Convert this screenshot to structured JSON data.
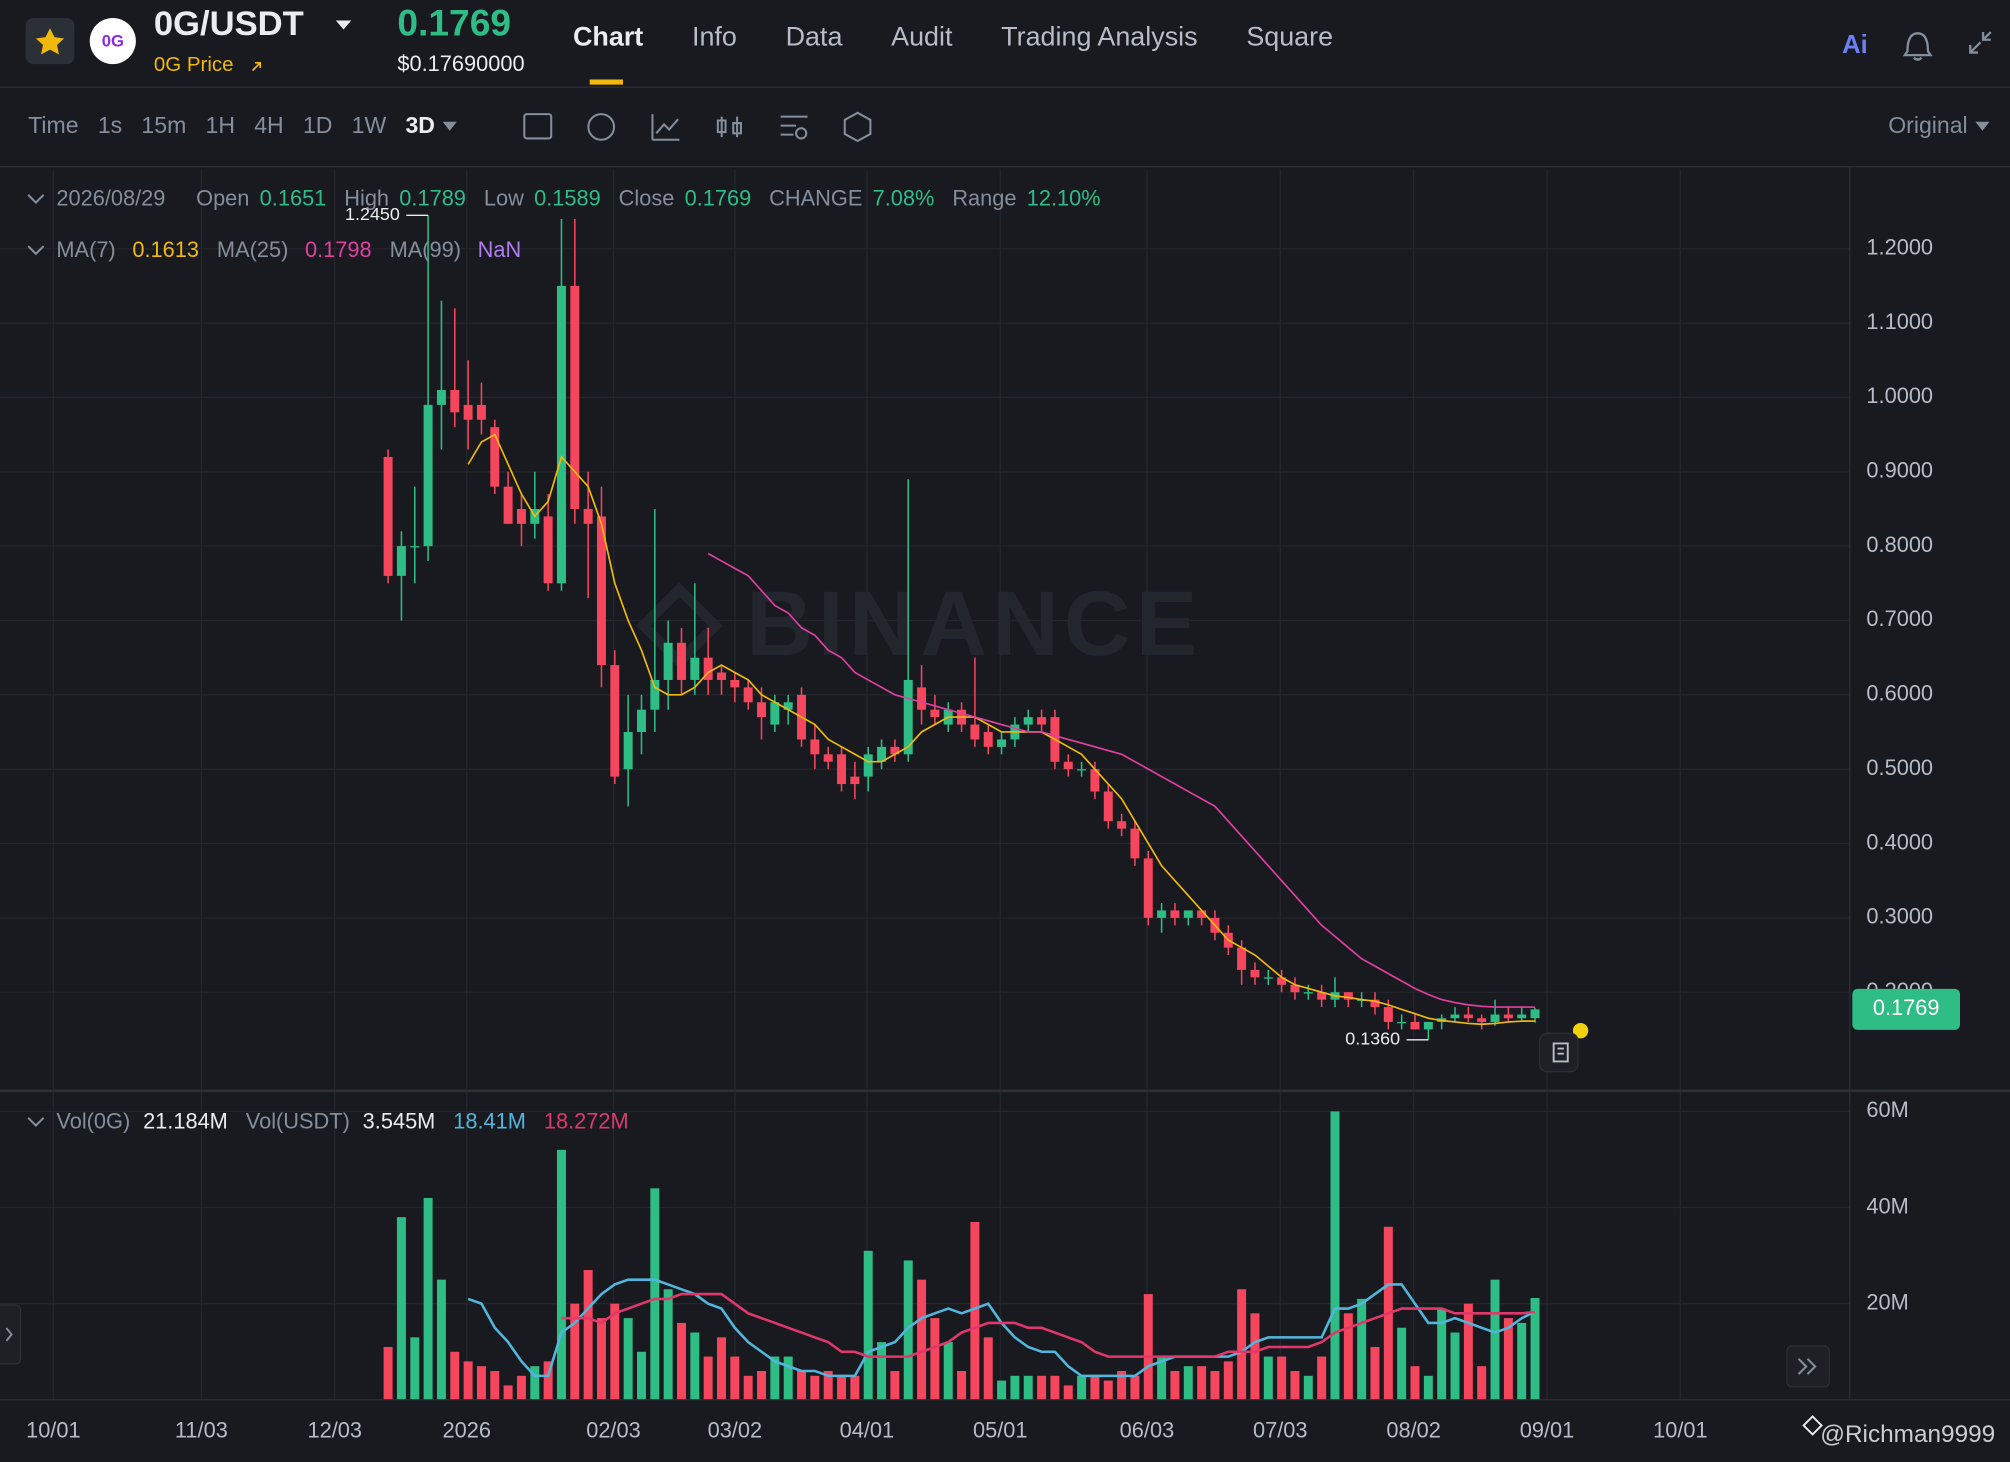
{
  "header": {
    "symbol": "0G/USDT",
    "logo": "0G",
    "subtitle": "0G Price",
    "price": "0.1769",
    "price_usd": "$0.17690000",
    "tabs": [
      "Chart",
      "Info",
      "Data",
      "Audit",
      "Trading Analysis",
      "Square"
    ],
    "ai": "Ai"
  },
  "toolbar": {
    "intervals": [
      "Time",
      "1s",
      "15m",
      "1H",
      "4H",
      "1D",
      "1W",
      "3D"
    ],
    "mode": "Original"
  },
  "watermark": "@Richman9999",
  "brand": "BINANCE",
  "chart_data": [
    {
      "type": "candlestick",
      "ohlc_legend": {
        "date": "2026/08/29",
        "items": [
          {
            "label": "Open",
            "value": "0.1651"
          },
          {
            "label": "High",
            "value": "0.1789"
          },
          {
            "label": "Low",
            "value": "0.1589"
          },
          {
            "label": "Close",
            "value": "0.1769"
          },
          {
            "label": "CHANGE",
            "value": "7.08%"
          },
          {
            "label": "Range",
            "value": "12.10%"
          }
        ]
      },
      "colors": {
        "up": "#2ebd85",
        "down": "#f6465d"
      },
      "open": [
        0.92,
        0.76,
        0.8,
        0.8,
        0.99,
        1.01,
        0.99,
        0.99,
        0.96,
        0.88,
        0.85,
        0.83,
        0.84,
        0.75,
        1.15,
        0.85,
        0.84,
        0.64,
        0.5,
        0.55,
        0.58,
        0.62,
        0.67,
        0.62,
        0.65,
        0.63,
        0.62,
        0.61,
        0.59,
        0.56,
        0.58,
        0.6,
        0.54,
        0.52,
        0.52,
        0.49,
        0.49,
        0.51,
        0.53,
        0.52,
        0.61,
        0.58,
        0.56,
        0.58,
        0.56,
        0.55,
        0.53,
        0.54,
        0.56,
        0.57,
        0.57,
        0.51,
        0.5,
        0.5,
        0.47,
        0.43,
        0.42,
        0.38,
        0.3,
        0.31,
        0.3,
        0.31,
        0.3,
        0.28,
        0.26,
        0.23,
        0.22,
        0.22,
        0.21,
        0.2,
        0.2,
        0.19,
        0.2,
        0.19,
        0.19,
        0.18,
        0.16,
        0.16,
        0.15,
        0.16,
        0.165,
        0.17,
        0.165,
        0.16,
        0.17,
        0.165,
        0.1651
      ],
      "high": [
        0.93,
        0.82,
        0.88,
        1.245,
        1.13,
        1.12,
        1.05,
        1.02,
        0.97,
        0.9,
        0.87,
        0.9,
        0.87,
        1.24,
        1.24,
        0.9,
        0.88,
        0.66,
        0.6,
        0.6,
        0.85,
        0.7,
        0.69,
        0.75,
        0.69,
        0.64,
        0.63,
        0.62,
        0.61,
        0.6,
        0.6,
        0.61,
        0.56,
        0.53,
        0.53,
        0.51,
        0.53,
        0.54,
        0.54,
        0.89,
        0.64,
        0.6,
        0.59,
        0.59,
        0.65,
        0.56,
        0.55,
        0.57,
        0.58,
        0.58,
        0.58,
        0.52,
        0.51,
        0.51,
        0.48,
        0.44,
        0.43,
        0.39,
        0.32,
        0.32,
        0.31,
        0.31,
        0.31,
        0.29,
        0.27,
        0.24,
        0.23,
        0.23,
        0.22,
        0.21,
        0.21,
        0.22,
        0.2,
        0.2,
        0.2,
        0.19,
        0.17,
        0.17,
        0.16,
        0.17,
        0.18,
        0.18,
        0.17,
        0.19,
        0.18,
        0.18,
        0.1789
      ],
      "low": [
        0.75,
        0.7,
        0.75,
        0.78,
        0.93,
        0.96,
        0.93,
        0.95,
        0.87,
        0.83,
        0.8,
        0.81,
        0.74,
        0.74,
        0.83,
        0.73,
        0.61,
        0.48,
        0.45,
        0.52,
        0.55,
        0.58,
        0.6,
        0.6,
        0.6,
        0.6,
        0.59,
        0.58,
        0.54,
        0.55,
        0.56,
        0.53,
        0.5,
        0.5,
        0.47,
        0.46,
        0.47,
        0.5,
        0.51,
        0.51,
        0.56,
        0.56,
        0.55,
        0.55,
        0.53,
        0.52,
        0.52,
        0.53,
        0.55,
        0.55,
        0.5,
        0.49,
        0.49,
        0.46,
        0.42,
        0.41,
        0.37,
        0.29,
        0.28,
        0.29,
        0.29,
        0.29,
        0.27,
        0.25,
        0.21,
        0.21,
        0.21,
        0.2,
        0.19,
        0.19,
        0.18,
        0.18,
        0.18,
        0.18,
        0.17,
        0.15,
        0.15,
        0.15,
        0.136,
        0.15,
        0.16,
        0.16,
        0.15,
        0.155,
        0.16,
        0.16,
        0.1589
      ],
      "close": [
        0.76,
        0.8,
        0.8,
        0.99,
        1.01,
        0.98,
        0.97,
        0.97,
        0.88,
        0.83,
        0.83,
        0.85,
        0.75,
        1.15,
        0.85,
        0.83,
        0.64,
        0.49,
        0.55,
        0.58,
        0.62,
        0.67,
        0.62,
        0.65,
        0.62,
        0.62,
        0.61,
        0.59,
        0.57,
        0.59,
        0.59,
        0.54,
        0.52,
        0.51,
        0.48,
        0.48,
        0.52,
        0.53,
        0.52,
        0.62,
        0.58,
        0.57,
        0.58,
        0.56,
        0.54,
        0.53,
        0.54,
        0.56,
        0.57,
        0.56,
        0.51,
        0.5,
        0.5,
        0.47,
        0.43,
        0.42,
        0.38,
        0.3,
        0.31,
        0.3,
        0.31,
        0.3,
        0.28,
        0.26,
        0.23,
        0.22,
        0.22,
        0.21,
        0.2,
        0.2,
        0.19,
        0.2,
        0.19,
        0.19,
        0.18,
        0.16,
        0.16,
        0.15,
        0.16,
        0.165,
        0.17,
        0.165,
        0.16,
        0.17,
        0.165,
        0.17,
        0.1769
      ],
      "series": [
        {
          "name": "MA(7)",
          "value_label": "0.1613",
          "color": "#f0b90b",
          "values": [
            null,
            null,
            null,
            null,
            null,
            null,
            0.91,
            0.94,
            0.95,
            0.91,
            0.87,
            0.84,
            0.86,
            0.92,
            0.9,
            0.88,
            0.83,
            0.75,
            0.7,
            0.66,
            0.61,
            0.6,
            0.6,
            0.61,
            0.63,
            0.64,
            0.63,
            0.62,
            0.6,
            0.59,
            0.58,
            0.57,
            0.56,
            0.54,
            0.53,
            0.52,
            0.51,
            0.51,
            0.52,
            0.53,
            0.55,
            0.56,
            0.57,
            0.57,
            0.57,
            0.56,
            0.55,
            0.55,
            0.55,
            0.55,
            0.54,
            0.53,
            0.52,
            0.5,
            0.48,
            0.46,
            0.43,
            0.4,
            0.37,
            0.35,
            0.33,
            0.31,
            0.29,
            0.27,
            0.26,
            0.25,
            0.235,
            0.22,
            0.21,
            0.205,
            0.2,
            0.195,
            0.193,
            0.19,
            0.188,
            0.183,
            0.177,
            0.171,
            0.165,
            0.162,
            0.16,
            0.158,
            0.157,
            0.158,
            0.16,
            0.161,
            0.1613
          ]
        },
        {
          "name": "MA(25)",
          "value_label": "0.1798",
          "color": "#e040a0",
          "values": [
            null,
            null,
            null,
            null,
            null,
            null,
            null,
            null,
            null,
            null,
            null,
            null,
            null,
            null,
            null,
            null,
            null,
            null,
            null,
            null,
            null,
            null,
            null,
            null,
            0.79,
            0.78,
            0.77,
            0.76,
            0.74,
            0.72,
            0.71,
            0.69,
            0.68,
            0.66,
            0.65,
            0.63,
            0.62,
            0.61,
            0.6,
            0.595,
            0.59,
            0.585,
            0.58,
            0.575,
            0.57,
            0.565,
            0.56,
            0.555,
            0.55,
            0.55,
            0.545,
            0.54,
            0.535,
            0.53,
            0.525,
            0.52,
            0.51,
            0.5,
            0.49,
            0.48,
            0.47,
            0.46,
            0.45,
            0.43,
            0.41,
            0.39,
            0.37,
            0.35,
            0.33,
            0.31,
            0.29,
            0.275,
            0.26,
            0.245,
            0.235,
            0.225,
            0.215,
            0.205,
            0.197,
            0.19,
            0.186,
            0.183,
            0.181,
            0.18,
            0.18,
            0.18,
            0.1798
          ]
        }
      ],
      "extra_legend": {
        "name": "MA(99)",
        "value_label": "NaN",
        "color": "#b07cf0"
      },
      "extremes": [
        {
          "x": 3,
          "value": 1.245,
          "label": "1.2450"
        },
        {
          "x": 78,
          "value": 0.136,
          "label": "0.1360"
        }
      ],
      "last_price": {
        "value": 0.1769,
        "label": "0.1769",
        "color": "#2ebd85"
      },
      "xlim": [
        -29.1,
        109.6
      ],
      "xticks": [
        {
          "value": -25.1,
          "label": "10/01"
        },
        {
          "value": -14.0,
          "label": "11/03"
        },
        {
          "value": -4.0,
          "label": "12/03"
        },
        {
          "value": 5.9,
          "label": "2026"
        },
        {
          "value": 16.9,
          "label": "02/03"
        },
        {
          "value": 26.0,
          "label": "03/02"
        },
        {
          "value": 35.9,
          "label": "04/01"
        },
        {
          "value": 45.9,
          "label": "05/01"
        },
        {
          "value": 56.9,
          "label": "06/03"
        },
        {
          "value": 66.9,
          "label": "07/03"
        },
        {
          "value": 76.9,
          "label": "08/02"
        },
        {
          "value": 86.9,
          "label": "09/01"
        },
        {
          "value": 96.9,
          "label": "10/01"
        }
      ],
      "ylim": [
        0.069,
        1.307
      ],
      "yticks": [
        {
          "value": 0.2,
          "label": "0.2000"
        },
        {
          "value": 0.3,
          "label": "0.3000"
        },
        {
          "value": 0.4,
          "label": "0.4000"
        },
        {
          "value": 0.5,
          "label": "0.5000"
        },
        {
          "value": 0.6,
          "label": "0.6000"
        },
        {
          "value": 0.7,
          "label": "0.7000"
        },
        {
          "value": 0.8,
          "label": "0.8000"
        },
        {
          "value": 0.9,
          "label": "0.9000"
        },
        {
          "value": 1.0,
          "label": "1.0000"
        },
        {
          "value": 1.1,
          "label": "1.1000"
        },
        {
          "value": 1.2,
          "label": "1.2000"
        }
      ],
      "grid": true
    },
    {
      "type": "bar",
      "legend": [
        {
          "label": "Vol(0G)",
          "value": "21.184M"
        },
        {
          "label": "Vol(USDT)",
          "value": "3.545M"
        }
      ],
      "values": [
        11,
        38,
        13,
        42,
        25,
        10,
        8,
        7,
        6,
        3,
        5,
        7,
        8,
        52,
        20,
        27,
        17,
        20,
        17,
        10,
        44,
        23,
        16,
        14,
        9,
        13,
        9,
        5,
        6,
        9,
        9,
        6,
        5,
        6,
        5,
        5,
        31,
        12,
        6,
        29,
        25,
        17,
        12,
        6,
        37,
        13,
        4,
        5,
        5,
        5,
        5,
        3,
        5,
        5,
        4,
        6,
        5,
        22,
        9,
        6,
        7,
        7,
        6,
        8,
        23,
        18,
        9,
        9,
        6,
        5,
        9,
        60,
        18,
        21,
        11,
        36,
        15,
        7,
        5,
        19,
        14,
        20,
        7,
        25,
        17,
        16,
        21.184
      ],
      "series": [
        {
          "value_label": "18.41M",
          "color": "#52b6dc",
          "values": [
            null,
            null,
            null,
            null,
            null,
            null,
            21,
            20,
            15,
            12,
            8,
            5,
            5,
            14,
            16,
            19,
            22,
            24,
            25,
            25,
            25,
            24,
            23,
            22,
            20,
            19,
            15,
            12,
            10,
            8,
            7,
            6,
            6,
            5,
            5,
            5,
            10,
            11,
            12,
            15,
            17,
            18,
            19,
            18,
            19,
            20,
            16,
            13,
            11,
            10,
            10,
            7,
            5,
            5,
            5,
            5,
            5,
            7,
            8,
            9,
            9,
            9,
            9,
            9,
            10,
            12,
            13,
            13,
            13,
            13,
            13,
            19,
            19,
            20,
            22,
            24,
            24,
            20,
            16,
            16,
            17,
            16,
            15,
            14,
            15,
            17,
            18.41
          ]
        },
        {
          "value_label": "18.272M",
          "color": "#e0386b",
          "values": [
            null,
            null,
            null,
            null,
            null,
            null,
            null,
            null,
            null,
            null,
            null,
            null,
            null,
            17,
            17,
            17,
            16,
            18,
            19,
            20,
            21,
            21,
            22,
            22,
            22,
            22,
            20,
            18,
            17,
            16,
            15,
            14,
            13,
            12,
            10,
            10,
            9,
            9,
            9,
            9,
            10,
            11,
            12,
            14,
            15,
            16,
            16,
            16,
            15,
            15,
            14,
            13,
            12,
            10,
            9,
            9,
            9,
            9,
            9,
            9,
            9,
            9,
            9,
            10,
            10,
            10,
            11,
            11,
            11,
            11,
            12,
            14,
            15,
            16,
            17,
            18,
            19,
            19,
            19,
            19,
            18,
            18,
            18,
            18,
            18,
            18,
            18.272
          ]
        }
      ],
      "xlim": [
        -29.1,
        109.6
      ],
      "ylim": [
        0,
        64
      ],
      "yticks": [
        {
          "value": 20,
          "label": "20M"
        },
        {
          "value": 40,
          "label": "40M"
        },
        {
          "value": 60,
          "label": "60M"
        }
      ],
      "grid": true
    }
  ]
}
